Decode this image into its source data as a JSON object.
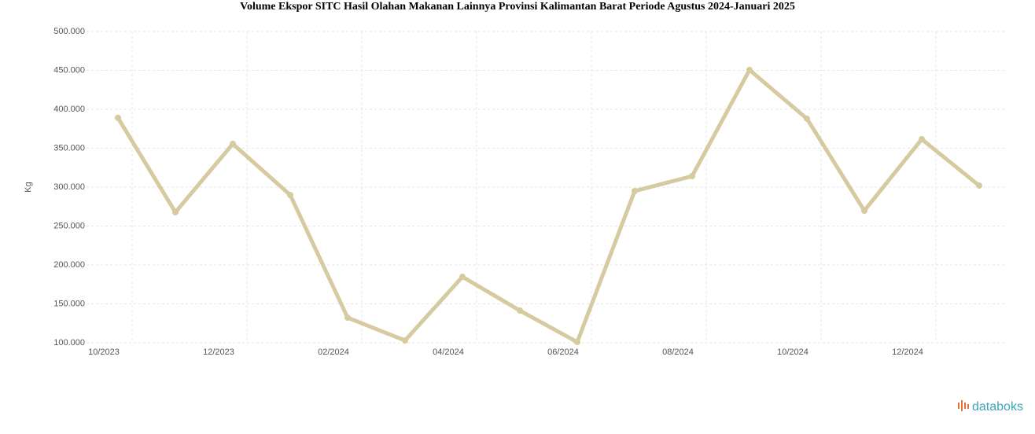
{
  "chart_data": {
    "type": "line",
    "title": "Volume Ekspor SITC Hasil Olahan Makanan Lainnya Provinsi Kalimantan Barat Periode Agustus 2024-Januari 2025",
    "y_label": "Kg",
    "categories": [
      "10/2023",
      null,
      "12/2023",
      null,
      "02/2024",
      null,
      "04/2024",
      null,
      "06/2024",
      null,
      "08/2024",
      null,
      "10/2024",
      null,
      "12/2024",
      null
    ],
    "series": [
      {
        "name": "Volume",
        "color": "#d6caa0",
        "values": [
          389000,
          267700,
          355600,
          289900,
          132300,
          103000,
          184800,
          141400,
          101000,
          295000,
          314100,
          450500,
          387900,
          269700,
          361600,
          302000
        ]
      }
    ],
    "ylim": [
      100000,
      500000
    ],
    "yticks": [
      {
        "value": 100000,
        "label": "100.000"
      },
      {
        "value": 150000,
        "label": "150.000"
      },
      {
        "value": 200000,
        "label": "200.000"
      },
      {
        "value": 250000,
        "label": "250.000"
      },
      {
        "value": 300000,
        "label": "300.000"
      },
      {
        "value": 350000,
        "label": "350.000"
      },
      {
        "value": 400000,
        "label": "400.000"
      },
      {
        "value": 450000,
        "label": "450.000"
      },
      {
        "value": 500000,
        "label": "500.000"
      }
    ],
    "grid": true,
    "brand": "databoks"
  }
}
